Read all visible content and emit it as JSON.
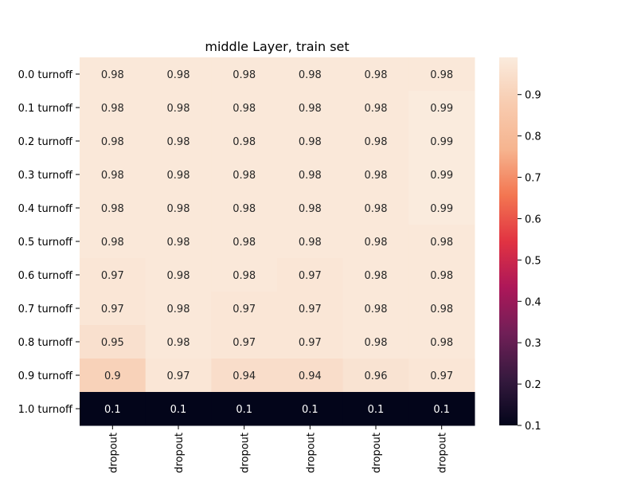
{
  "chart_data": {
    "type": "heatmap",
    "title": "middle Layer, train set",
    "row_labels": [
      "0.0 turnoff",
      "0.1 turnoff",
      "0.2 turnoff",
      "0.3 turnoff",
      "0.4 turnoff",
      "0.5 turnoff",
      "0.6 turnoff",
      "0.7 turnoff",
      "0.8 turnoff",
      "0.9 turnoff",
      "1.0 turnoff"
    ],
    "col_labels": [
      "dropout",
      "dropout",
      "dropout",
      "dropout",
      "dropout",
      "dropout"
    ],
    "values": [
      [
        0.98,
        0.98,
        0.98,
        0.98,
        0.98,
        0.98
      ],
      [
        0.98,
        0.98,
        0.98,
        0.98,
        0.98,
        0.99
      ],
      [
        0.98,
        0.98,
        0.98,
        0.98,
        0.98,
        0.99
      ],
      [
        0.98,
        0.98,
        0.98,
        0.98,
        0.98,
        0.99
      ],
      [
        0.98,
        0.98,
        0.98,
        0.98,
        0.98,
        0.99
      ],
      [
        0.98,
        0.98,
        0.98,
        0.98,
        0.98,
        0.98
      ],
      [
        0.97,
        0.98,
        0.98,
        0.97,
        0.98,
        0.98
      ],
      [
        0.97,
        0.98,
        0.97,
        0.97,
        0.98,
        0.98
      ],
      [
        0.95,
        0.98,
        0.97,
        0.97,
        0.98,
        0.98
      ],
      [
        0.9,
        0.97,
        0.94,
        0.94,
        0.96,
        0.97
      ],
      [
        0.1,
        0.1,
        0.1,
        0.1,
        0.1,
        0.1
      ]
    ],
    "value_labels": [
      [
        "0.98",
        "0.98",
        "0.98",
        "0.98",
        "0.98",
        "0.98"
      ],
      [
        "0.98",
        "0.98",
        "0.98",
        "0.98",
        "0.98",
        "0.99"
      ],
      [
        "0.98",
        "0.98",
        "0.98",
        "0.98",
        "0.98",
        "0.99"
      ],
      [
        "0.98",
        "0.98",
        "0.98",
        "0.98",
        "0.98",
        "0.99"
      ],
      [
        "0.98",
        "0.98",
        "0.98",
        "0.98",
        "0.98",
        "0.99"
      ],
      [
        "0.98",
        "0.98",
        "0.98",
        "0.98",
        "0.98",
        "0.98"
      ],
      [
        "0.97",
        "0.98",
        "0.98",
        "0.97",
        "0.98",
        "0.98"
      ],
      [
        "0.97",
        "0.98",
        "0.97",
        "0.97",
        "0.98",
        "0.98"
      ],
      [
        "0.95",
        "0.98",
        "0.97",
        "0.97",
        "0.98",
        "0.98"
      ],
      [
        "0.9",
        "0.97",
        "0.94",
        "0.94",
        "0.96",
        "0.97"
      ],
      [
        "0.1",
        "0.1",
        "0.1",
        "0.1",
        "0.1",
        "0.1"
      ]
    ],
    "colorscale": "rocket",
    "vmin": 0.1,
    "vmax": 0.99,
    "colorbar_ticks": [
      0.1,
      0.2,
      0.3,
      0.4,
      0.5,
      0.6,
      0.7,
      0.8,
      0.9
    ],
    "colorbar_tick_labels": [
      "0.1",
      "0.2",
      "0.3",
      "0.4",
      "0.5",
      "0.6",
      "0.7",
      "0.8",
      "0.9"
    ],
    "grid": false,
    "legend": "colorbar-right"
  }
}
